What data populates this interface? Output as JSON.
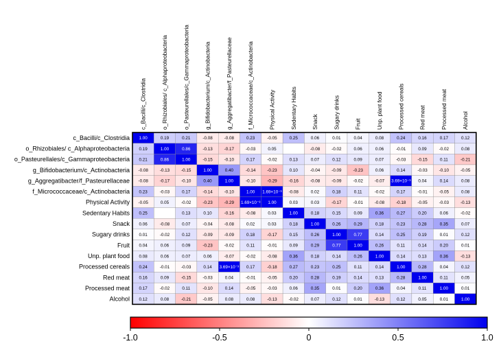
{
  "chart_data": {
    "type": "heatmap",
    "title": "",
    "rows": [
      "c_Bacilli/c_Clostridia",
      "o_Rhizobiales/ c_Alphaproteobacteria",
      "o_Pasteurellales/c_Gammaproteobacteria",
      "g_Bifidobacterium/c_Actinobacteria",
      "g_Aggregatibacter/f_Pasteurellaceae",
      "f_Micrococcaceae/c_Actinobacteria",
      "Physical Activity",
      "Sedentary Habits",
      "Snack",
      "Sugary drinks",
      "Fruit",
      "Unp. plant food",
      "Processed cereals",
      "Red meat",
      "Processed meat",
      "Alcohol"
    ],
    "columns": [
      "c_Bacilli/c_Clostridia",
      "o_Rhizobiales/ c_Alphaproteobacteria",
      "o_Pasteurellales/c_Gammaproteobacteria",
      "g_Bifidobacterium/c_Actinobacteria",
      "g_Aggregatibacter/f_Pasteurellaceae",
      "f_Micrococcaceae/c_Actinobacteria",
      "Physical Activity",
      "Sedentary Habits",
      "Snack",
      "Sugary drinks",
      "Fruit",
      "Unp. plant food",
      "Processed cereals",
      "Red meat",
      "Processed meat",
      "Alcohol"
    ],
    "values": [
      [
        "1.00",
        "0.19",
        "0.21",
        "-0.08",
        "-0.08",
        "0.23",
        "-0.05",
        "0.25",
        "0.06",
        "0.01",
        "0.04",
        "0.08",
        "0.24",
        "0.16",
        "0.17",
        "0.12"
      ],
      [
        "0.19",
        "1.00",
        "0.86",
        "-0.13",
        "-0.17",
        "-0.03",
        "0.05",
        "",
        "-0.08",
        "-0.02",
        "0.06",
        "0.06",
        "-0.01",
        "0.09",
        "-0.02",
        "0.08"
      ],
      [
        "0.21",
        "0.86",
        "1.00",
        "-0.15",
        "-0.10",
        "0.17",
        "-0.02",
        "0.13",
        "0.07",
        "0.12",
        "0.09",
        "0.07",
        "-0.03",
        "-0.15",
        "0.11",
        "-0.21"
      ],
      [
        "-0.08",
        "-0.13",
        "-0.15",
        "1.00",
        "0.40",
        "-0.14",
        "-0.23",
        "0.10",
        "-0.04",
        "-0.09",
        "-0.23",
        "0.06",
        "0.14",
        "-0.03",
        "-0.10",
        "-0.05"
      ],
      [
        "-0.08",
        "-0.17",
        "-0.10",
        "0.40",
        "1.00",
        "-0.10",
        "-0.29",
        "-0.16",
        "-0.08",
        "-0.09",
        "-0.02",
        "-0.07",
        "3.69×10⁻³",
        "0.04",
        "0.14",
        "0.08"
      ],
      [
        "0.23",
        "-0.03",
        "0.17",
        "-0.14",
        "-0.10",
        "1.00",
        "1.69×10⁻³",
        "-0.08",
        "0.02",
        "0.18",
        "0.11",
        "-0.02",
        "0.17",
        "-0.01",
        "-0.05",
        "0.08"
      ],
      [
        "-0.05",
        "0.05",
        "-0.02",
        "-0.23",
        "-0.29",
        "1.69×10⁻³",
        "1.00",
        "0.03",
        "0.03",
        "-0.17",
        "-0.01",
        "-0.08",
        "-0.18",
        "-0.05",
        "-0.03",
        "-0.13"
      ],
      [
        "0.25",
        "",
        "0.13",
        "0.10",
        "-0.16",
        "-0.08",
        "0.03",
        "1.00",
        "0.18",
        "0.15",
        "0.09",
        "0.36",
        "0.27",
        "0.20",
        "0.06",
        "-0.02"
      ],
      [
        "0.06",
        "-0.08",
        "0.07",
        "-0.04",
        "-0.08",
        "0.02",
        "0.03",
        "0.18",
        "1.00",
        "0.26",
        "0.29",
        "0.18",
        "0.23",
        "0.28",
        "0.35",
        "0.07"
      ],
      [
        "0.01",
        "-0.02",
        "0.12",
        "-0.09",
        "-0.09",
        "0.18",
        "-0.17",
        "0.15",
        "0.26",
        "1.00",
        "0.77",
        "0.14",
        "0.25",
        "0.19",
        "0.01",
        "0.12"
      ],
      [
        "0.04",
        "0.06",
        "0.09",
        "-0.23",
        "-0.02",
        "0.11",
        "-0.01",
        "0.09",
        "0.29",
        "0.77",
        "1.00",
        "0.26",
        "0.11",
        "0.14",
        "0.20",
        "0.01"
      ],
      [
        "0.08",
        "0.06",
        "0.07",
        "0.06",
        "-0.07",
        "-0.02",
        "-0.08",
        "0.36",
        "0.18",
        "0.14",
        "0.26",
        "1.00",
        "0.14",
        "0.13",
        "0.36",
        "-0.13"
      ],
      [
        "0.24",
        "-0.01",
        "-0.03",
        "0.14",
        "3.69×10⁻³",
        "0.17",
        "-0.18",
        "0.27",
        "0.23",
        "0.25",
        "0.11",
        "0.14",
        "1.00",
        "0.28",
        "0.04",
        "0.12"
      ],
      [
        "0.16",
        "0.09",
        "-0.15",
        "-0.03",
        "0.04",
        "-0.01",
        "-0.05",
        "0.20",
        "0.28",
        "0.19",
        "0.14",
        "0.13",
        "0.28",
        "1.00",
        "0.11",
        "0.05"
      ],
      [
        "0.17",
        "-0.02",
        "0.11",
        "-0.10",
        "0.14",
        "-0.05",
        "-0.03",
        "0.06",
        "0.35",
        "0.01",
        "0.20",
        "0.36",
        "0.04",
        "0.11",
        "1.00",
        "0.01"
      ],
      [
        "0.12",
        "0.08",
        "-0.21",
        "-0.05",
        "0.08",
        "0.08",
        "-0.13",
        "-0.02",
        "0.07",
        "0.12",
        "0.01",
        "-0.13",
        "0.12",
        "0.05",
        "0.01",
        "1.00"
      ]
    ],
    "color_scale": {
      "min": -1.0,
      "mid": 0,
      "max": 1.0,
      "min_color": "#ff0000",
      "mid_color": "#ffffff",
      "max_color": "#0000ee",
      "ticks": [
        "-1.0",
        "-0.5",
        "0",
        "0.5",
        "1.0"
      ]
    }
  }
}
